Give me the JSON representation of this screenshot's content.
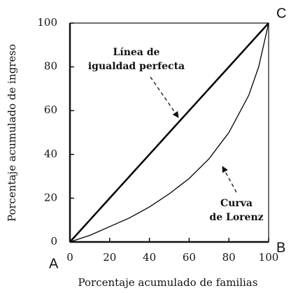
{
  "chart_data": {
    "type": "line",
    "x_label": "Porcentaje acumulado de familias",
    "y_label": "Porcentaje acumulado de ingreso",
    "x": [
      0,
      10,
      20,
      30,
      40,
      50,
      60,
      70,
      80,
      90,
      95,
      100
    ],
    "series": [
      {
        "color": "#000000",
        "values": [
          0,
          10,
          20,
          30,
          40,
          50,
          60,
          70,
          80,
          90,
          95,
          100
        ]
      },
      {
        "color": "#000000",
        "values": [
          0,
          3,
          7,
          11,
          16,
          22,
          29,
          38,
          50,
          67,
          80,
          100
        ]
      }
    ],
    "xlim": [
      0,
      100
    ],
    "ylim": [
      0,
      100
    ],
    "xticks": [
      0,
      20,
      40,
      60,
      80,
      100
    ],
    "yticks": [
      0,
      20,
      40,
      60,
      80,
      100
    ],
    "annotations": [
      {
        "lines": [
          "Línea de",
          "igualdad perfecta"
        ]
      },
      {
        "lines": [
          "Curva",
          "de Lorenz"
        ]
      }
    ],
    "corner_labels": [
      "A",
      "B",
      "C"
    ]
  }
}
